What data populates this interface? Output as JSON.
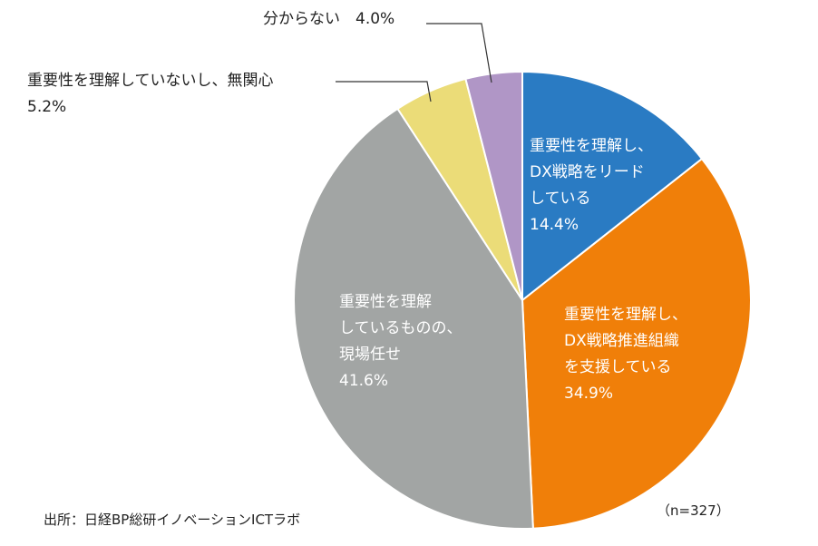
{
  "chart_data": {
    "type": "pie",
    "slices": [
      {
        "label": [
          "重要性を理解し、",
          "DX戦略をリード",
          "している",
          "14.4%"
        ],
        "value": 14.4,
        "color": "#2a7bc3"
      },
      {
        "label": [
          "重要性を理解し、",
          "DX戦略推進組織",
          "を支援している",
          "34.9%"
        ],
        "value": 34.9,
        "color": "#f07f09"
      },
      {
        "label": [
          "重要性を理解",
          "しているものの、",
          "現場任せ",
          "41.6%"
        ],
        "value": 41.6,
        "color": "#a2a5a4"
      },
      {
        "label": [
          "重要性を理解していないし、無関心",
          "5.2%"
        ],
        "value": 5.2,
        "color": "#ebdc78"
      },
      {
        "label": [
          "分からない　4.0%"
        ],
        "value": 4.0,
        "color": "#b096c6"
      }
    ]
  },
  "source": "出所：日経BP総研イノベーションICTラボ",
  "sample_size": "（n=327）"
}
